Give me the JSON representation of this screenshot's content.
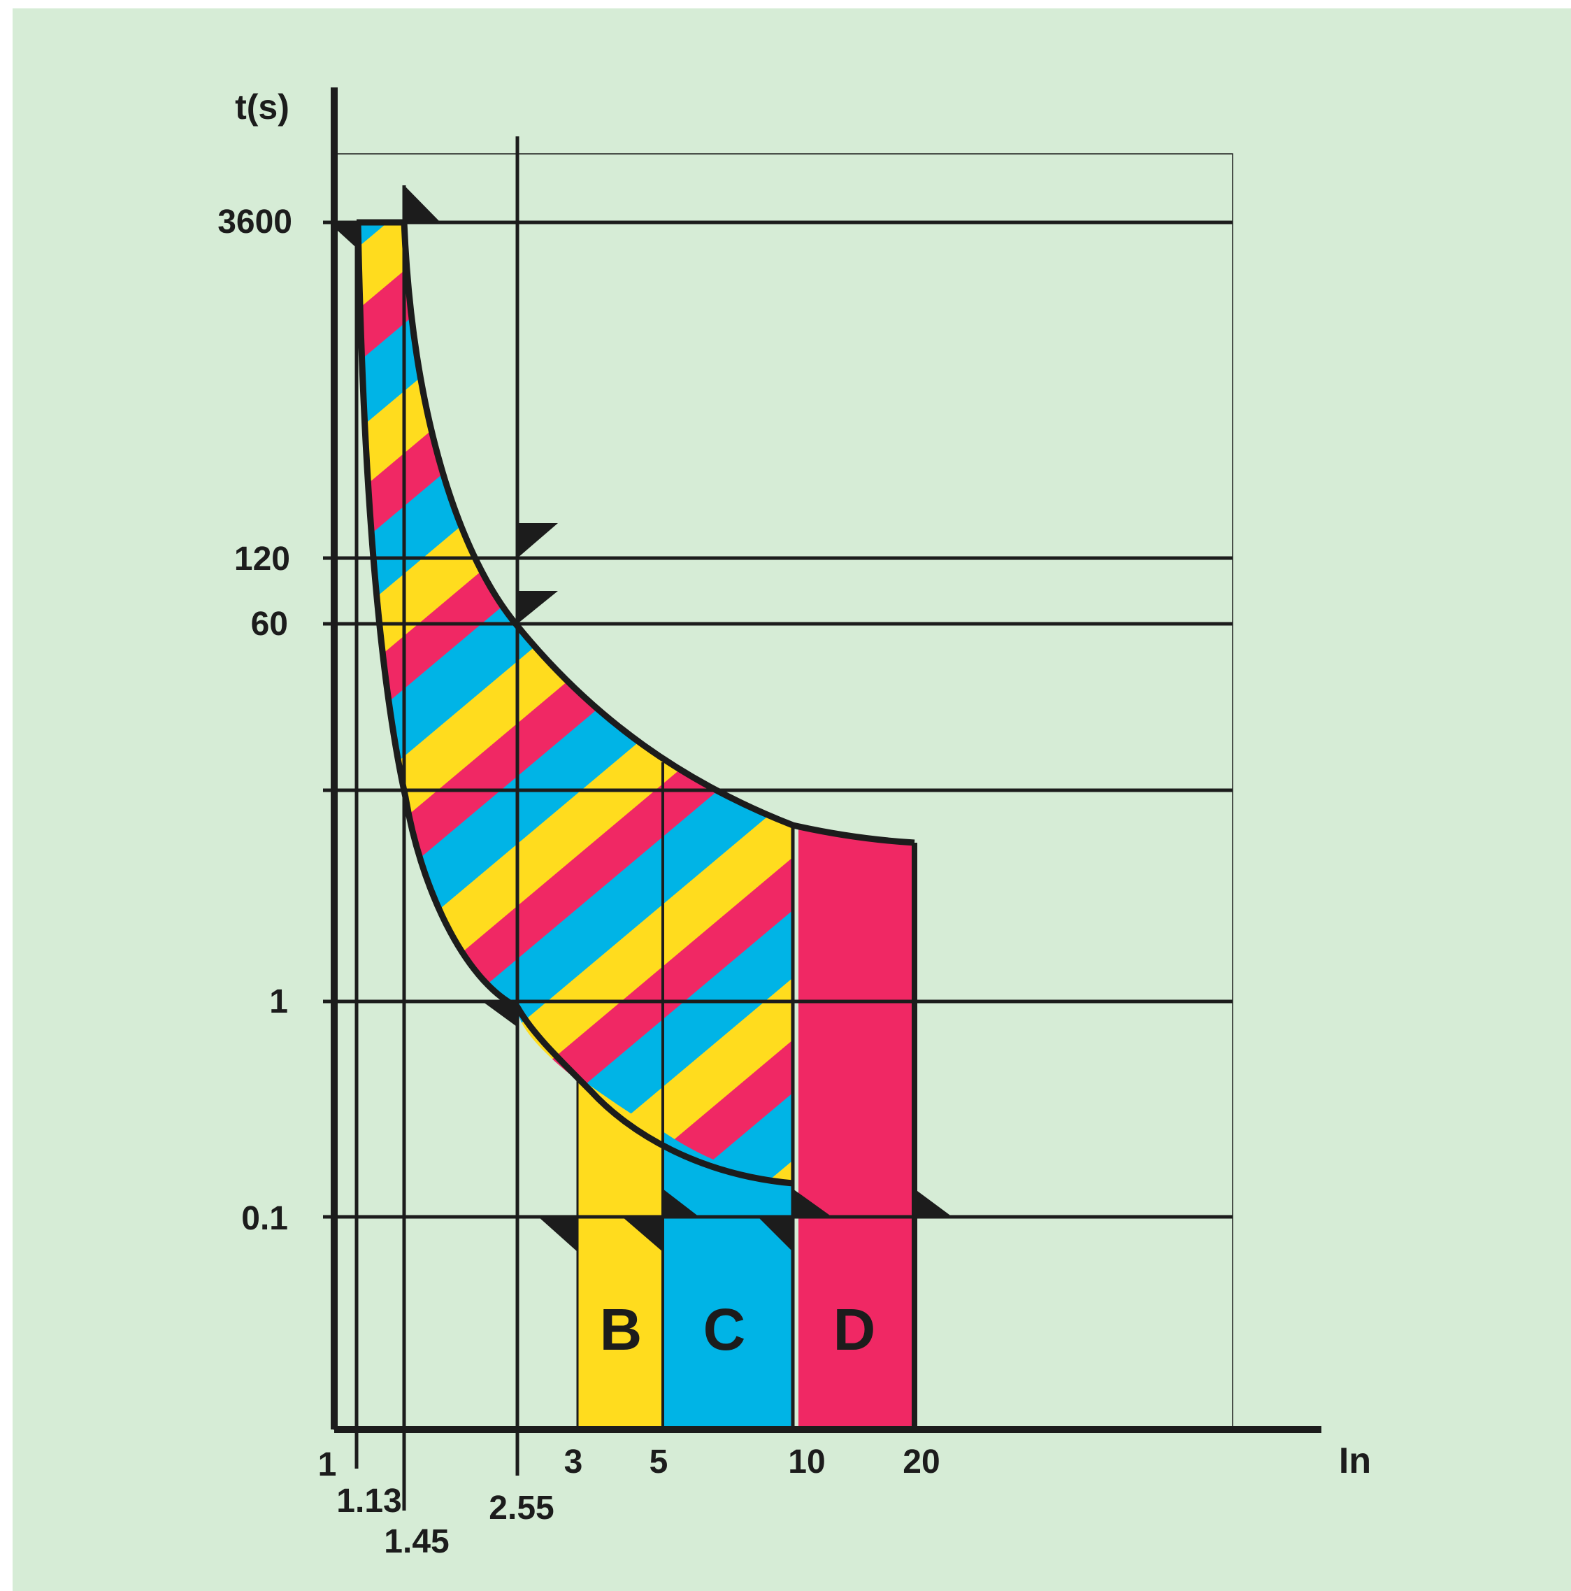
{
  "chart_data": {
    "type": "area",
    "title": "",
    "ylabel": "t(s)",
    "xlabel": "In",
    "x_ticks": [
      {
        "value": 1,
        "label": "1"
      },
      {
        "value": 1.13,
        "label": "1.13"
      },
      {
        "value": 1.45,
        "label": "1.45"
      },
      {
        "value": 2.55,
        "label": "2.55"
      },
      {
        "value": 3,
        "label": "3"
      },
      {
        "value": 5,
        "label": "5"
      },
      {
        "value": 10,
        "label": "10"
      },
      {
        "value": 20,
        "label": "20"
      }
    ],
    "y_ticks": [
      {
        "value": 0.1,
        "label": "0.1"
      },
      {
        "value": 1,
        "label": "1"
      },
      {
        "value": 60,
        "label": "60"
      },
      {
        "value": 120,
        "label": "120"
      },
      {
        "value": 3600,
        "label": "3600"
      }
    ],
    "bands": [
      {
        "name": "B",
        "x_start": 3,
        "x_end": 5,
        "color": "#ffdc1e"
      },
      {
        "name": "C",
        "x_start": 5,
        "x_end": 10,
        "color": "#00b4e6"
      },
      {
        "name": "D",
        "x_start": 10,
        "x_end": 20,
        "color": "#f02864"
      }
    ],
    "colors": {
      "background": "#d6ecd6",
      "yellow": "#ffdc1e",
      "blue": "#00b4e6",
      "magenta": "#f02864",
      "line": "#1c1c1c"
    }
  }
}
